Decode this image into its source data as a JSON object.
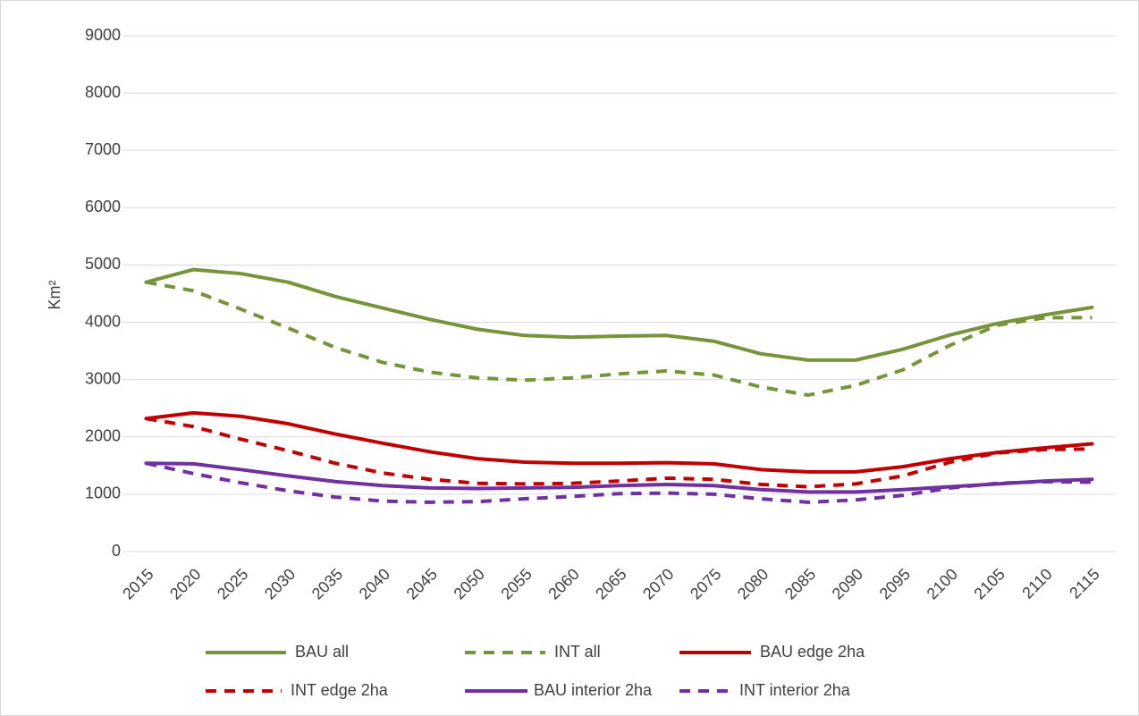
{
  "chart_data": {
    "type": "line",
    "y_label": "Km²",
    "categories": [
      "2015",
      "2020",
      "2025",
      "2030",
      "2035",
      "2040",
      "2045",
      "2050",
      "2055",
      "2060",
      "2065",
      "2070",
      "2075",
      "2080",
      "2085",
      "2090",
      "2095",
      "2100",
      "2105",
      "2110",
      "2115"
    ],
    "ylim": [
      0,
      9000
    ],
    "yticks": [
      0,
      1000,
      2000,
      3000,
      4000,
      5000,
      6000,
      7000,
      8000,
      9000
    ],
    "grid": true,
    "legend": "bottom",
    "series": [
      {
        "name": "BAU all",
        "color": "#77933c",
        "dashed": false,
        "values": [
          4700,
          4920,
          4850,
          4700,
          4450,
          4250,
          4050,
          3880,
          3770,
          3740,
          3760,
          3770,
          3670,
          3450,
          3340,
          3340,
          3530,
          3780,
          3980,
          4130,
          4260
        ]
      },
      {
        "name": "INT all",
        "color": "#77933c",
        "dashed": true,
        "values": [
          4700,
          4550,
          4230,
          3900,
          3560,
          3300,
          3130,
          3030,
          2990,
          3030,
          3100,
          3150,
          3080,
          2870,
          2730,
          2900,
          3170,
          3600,
          3950,
          4080,
          4080
        ]
      },
      {
        "name": "BAU edge 2ha",
        "color": "#c00000",
        "dashed": false,
        "values": [
          2320,
          2420,
          2360,
          2230,
          2050,
          1890,
          1740,
          1620,
          1560,
          1540,
          1540,
          1550,
          1530,
          1430,
          1390,
          1390,
          1480,
          1620,
          1730,
          1810,
          1880
        ]
      },
      {
        "name": "INT edge 2ha",
        "color": "#c00000",
        "dashed": true,
        "values": [
          2320,
          2180,
          1960,
          1760,
          1540,
          1370,
          1260,
          1190,
          1180,
          1190,
          1230,
          1280,
          1260,
          1170,
          1130,
          1180,
          1320,
          1560,
          1720,
          1780,
          1790
        ]
      },
      {
        "name": "BAU interior 2ha",
        "color": "#7030a0",
        "dashed": false,
        "values": [
          1540,
          1530,
          1430,
          1320,
          1220,
          1150,
          1110,
          1100,
          1110,
          1120,
          1150,
          1170,
          1150,
          1080,
          1040,
          1040,
          1080,
          1130,
          1180,
          1230,
          1260
        ]
      },
      {
        "name": "INT interior 2ha",
        "color": "#7030a0",
        "dashed": true,
        "values": [
          1540,
          1360,
          1200,
          1060,
          950,
          880,
          860,
          870,
          920,
          960,
          1010,
          1020,
          1000,
          920,
          860,
          900,
          980,
          1110,
          1190,
          1220,
          1210
        ]
      }
    ]
  }
}
